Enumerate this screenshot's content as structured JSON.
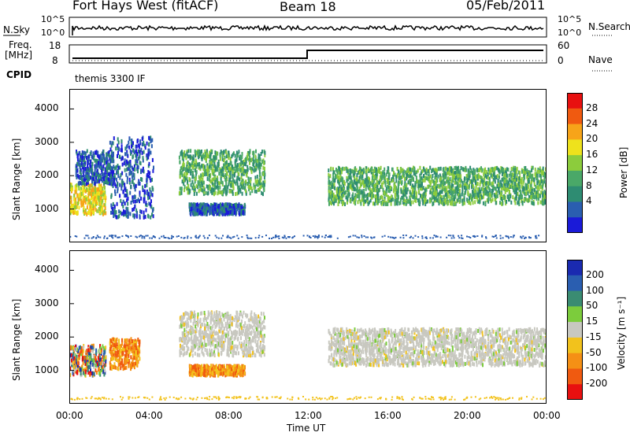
{
  "header": {
    "station": "Fort Hays West (fitACF)",
    "beam": "Beam 18",
    "date": "05/Feb/2011"
  },
  "top_panels": {
    "nsky_label": "N.Sky",
    "nsky_ticks": [
      "10^5",
      "10^0"
    ],
    "nsearch_label": "N.Search",
    "nsearch_ticks": [
      "10^5",
      "10^0"
    ],
    "freq_label": "Freq.",
    "freq_unit": "[MHz]",
    "freq_ticks": [
      "18",
      "8"
    ],
    "nave_label": "Nave",
    "nave_ticks": [
      "60",
      "0"
    ],
    "cpid_label": "CPID",
    "cpid_value": "themis 3300 IF"
  },
  "chart_data": [
    {
      "type": "heatmap",
      "name": "power",
      "ylabel": "Slant Range [km]",
      "ylim": [
        0,
        4600
      ],
      "yticks": [
        "4000",
        "3000",
        "2000",
        "1000"
      ],
      "xlim": [
        0,
        24
      ],
      "colorbar": {
        "title": "Power [dB]",
        "ticks": [
          "28",
          "24",
          "20",
          "16",
          "12",
          "8",
          "4"
        ],
        "colors": [
          "#e81010",
          "#f05a10",
          "#f7a419",
          "#eee21c",
          "#8ccc3c",
          "#4aa868",
          "#2e8c72",
          "#2a5eb0",
          "#1a1ad8"
        ]
      },
      "echo_regions": [
        {
          "t0": 0.0,
          "t1": 1.8,
          "r0": 900,
          "r1": 1800,
          "level": "high"
        },
        {
          "t0": 0.3,
          "t1": 2.2,
          "r0": 1800,
          "r1": 2800,
          "level": "low"
        },
        {
          "t0": 2.0,
          "t1": 4.2,
          "r0": 800,
          "r1": 3200,
          "level": "low"
        },
        {
          "t0": 5.5,
          "t1": 9.8,
          "r0": 1500,
          "r1": 2800,
          "level": "mid"
        },
        {
          "t0": 6.0,
          "t1": 8.8,
          "r0": 900,
          "r1": 1200,
          "level": "low"
        },
        {
          "t0": 13.0,
          "t1": 24.0,
          "r0": 1200,
          "r1": 2300,
          "level": "mid"
        }
      ]
    },
    {
      "type": "heatmap",
      "name": "velocity",
      "ylabel": "Slant Range [km]",
      "ylim": [
        0,
        4600
      ],
      "yticks": [
        "4000",
        "3000",
        "2000",
        "1000"
      ],
      "xlabel": "Time UT",
      "xticks": [
        "00:00",
        "04:00",
        "08:00",
        "12:00",
        "16:00",
        "20:00",
        "00:00"
      ],
      "xlim": [
        0,
        24
      ],
      "colorbar": {
        "title": "Velocity [m s⁻¹]",
        "ticks": [
          "200",
          "100",
          "50",
          "15",
          "-15",
          "-50",
          "-100",
          "-200"
        ],
        "colors": [
          "#1a2ab0",
          "#2a5eb0",
          "#3a8c72",
          "#7ccc3c",
          "#c8c8c0",
          "#f2c21c",
          "#f59015",
          "#f05a10",
          "#e81010"
        ]
      },
      "echo_regions": [
        {
          "t0": 0.0,
          "t1": 1.8,
          "r0": 900,
          "r1": 1800,
          "level": "mixed"
        },
        {
          "t0": 2.0,
          "t1": 3.5,
          "r0": 1100,
          "r1": 2000,
          "level": "negative"
        },
        {
          "t0": 5.5,
          "t1": 9.8,
          "r0": 1500,
          "r1": 2800,
          "level": "near-zero"
        },
        {
          "t0": 6.0,
          "t1": 8.8,
          "r0": 900,
          "r1": 1200,
          "level": "negative"
        },
        {
          "t0": 13.0,
          "t1": 24.0,
          "r0": 1200,
          "r1": 2300,
          "level": "near-zero"
        }
      ]
    }
  ]
}
